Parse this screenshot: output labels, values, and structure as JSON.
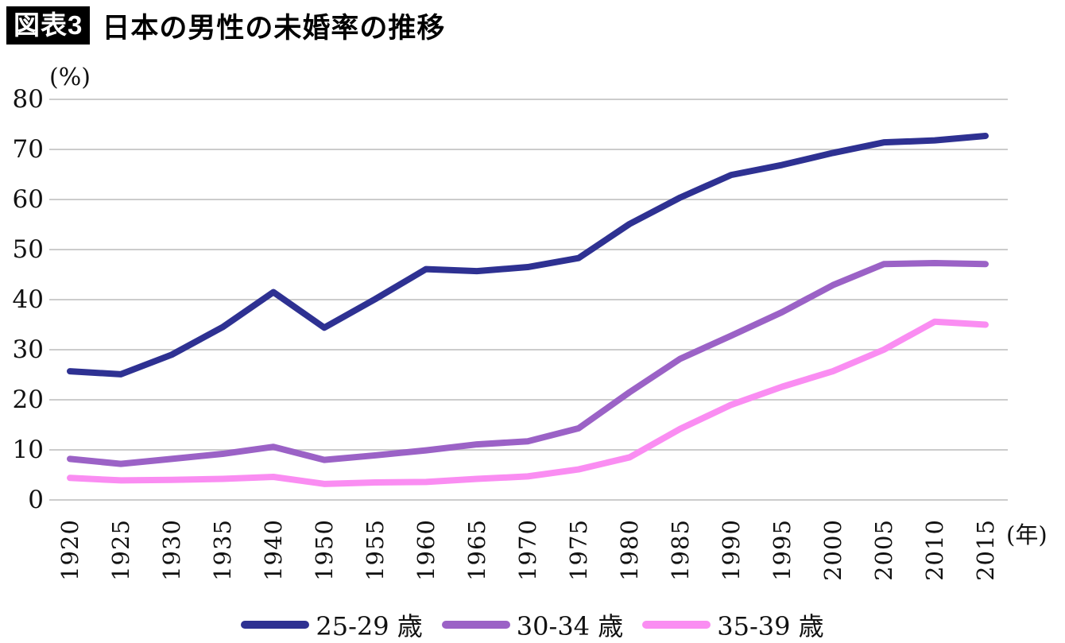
{
  "header": {
    "badge": "図表3",
    "title": "日本の男性の未婚率の推移"
  },
  "chart": {
    "y_unit": "(%)",
    "x_unit": "(年)"
  },
  "chart_data": {
    "type": "line",
    "title": "日本の男性の未婚率の推移",
    "xlabel": "年",
    "ylabel": "%",
    "ylim": [
      0,
      80
    ],
    "yticks": [
      0,
      10,
      20,
      30,
      40,
      50,
      60,
      70,
      80
    ],
    "grid": "horizontal",
    "legend_position": "bottom",
    "grid_color": "#cccccc",
    "categories": [
      "1920",
      "1925",
      "1930",
      "1935",
      "1940",
      "1950",
      "1955",
      "1960",
      "1965",
      "1970",
      "1975",
      "1980",
      "1985",
      "1990",
      "1995",
      "2000",
      "2005",
      "2010",
      "2015"
    ],
    "series": [
      {
        "name": "25-29 歳",
        "color": "#2e3192",
        "values": [
          25.7,
          25.1,
          29.0,
          34.5,
          41.5,
          34.4,
          40.1,
          46.1,
          45.7,
          46.5,
          48.3,
          55.1,
          60.4,
          64.9,
          66.9,
          69.3,
          71.4,
          71.8,
          72.7
        ]
      },
      {
        "name": "30-34 歳",
        "color": "#9b62c6",
        "values": [
          8.2,
          7.2,
          8.2,
          9.2,
          10.6,
          8.0,
          8.9,
          9.9,
          11.1,
          11.7,
          14.3,
          21.5,
          28.2,
          32.8,
          37.5,
          42.9,
          47.1,
          47.3,
          47.1
        ]
      },
      {
        "name": "35-39 歳",
        "color": "#fa8df2",
        "values": [
          4.4,
          3.9,
          4.0,
          4.2,
          4.6,
          3.2,
          3.5,
          3.6,
          4.2,
          4.7,
          6.1,
          8.5,
          14.2,
          19.0,
          22.6,
          25.7,
          30.0,
          35.6,
          35.0
        ]
      }
    ]
  }
}
